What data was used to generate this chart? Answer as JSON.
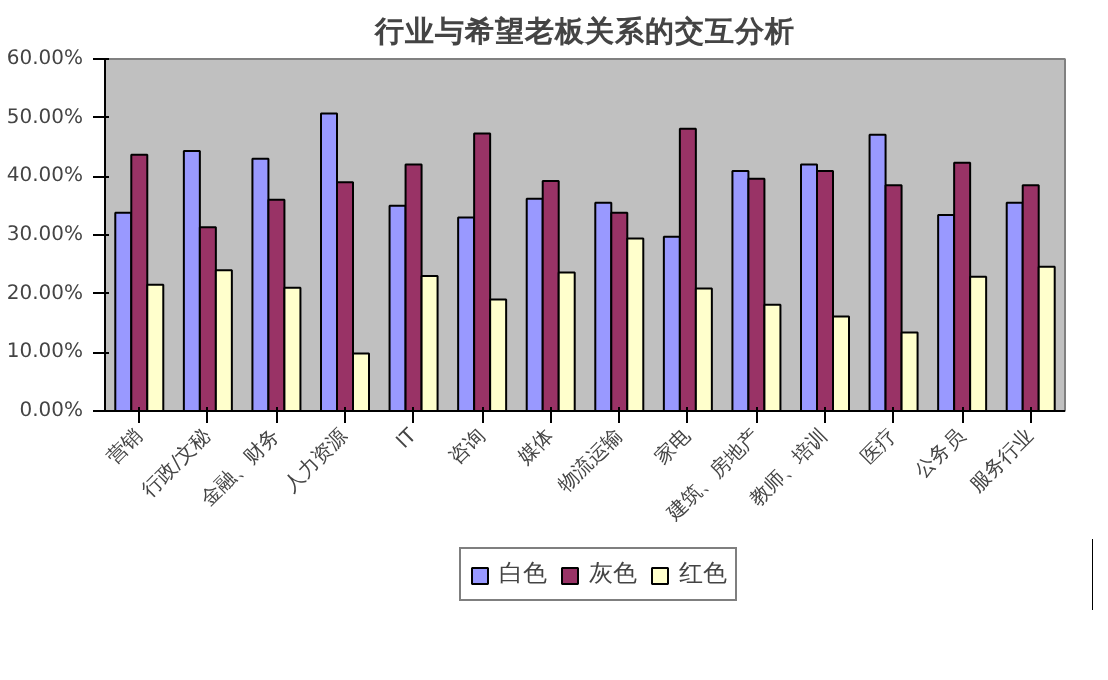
{
  "chart_data": {
    "type": "bar",
    "title": "行业与希望老板关系的交互分析",
    "categories": [
      "营销",
      "行政/文秘",
      "金融、财务",
      "人力资源",
      "IT",
      "咨询",
      "媒体",
      "物流运输",
      "家电",
      "建筑、房地产",
      "教师、培训",
      "医疗",
      "公务员",
      "服务行业"
    ],
    "series": [
      {
        "name": "白色",
        "color": "#9999ff",
        "values": [
          33.8,
          44.3,
          43,
          50.7,
          35,
          33,
          36.2,
          35.5,
          29.7,
          40.9,
          42,
          47.1,
          33.4,
          35.5
        ]
      },
      {
        "name": "灰色",
        "color": "#993366",
        "values": [
          43.7,
          31.3,
          36,
          39,
          42,
          47.3,
          39.2,
          33.8,
          48.1,
          39.6,
          40.9,
          38.5,
          42.3,
          38.5
        ]
      },
      {
        "name": "红色",
        "color": "#ffffcc",
        "values": [
          21.5,
          24,
          21,
          9.8,
          23,
          19,
          23.6,
          29.4,
          20.9,
          18.1,
          16.1,
          13.4,
          22.9,
          24.6
        ]
      }
    ],
    "ylim": [
      0,
      60
    ],
    "yticks": [
      {
        "value": 0,
        "label": "0.00%"
      },
      {
        "value": 10,
        "label": "10.00%"
      },
      {
        "value": 20,
        "label": "20.00%"
      },
      {
        "value": 30,
        "label": "30.00%"
      },
      {
        "value": 40,
        "label": "40.00%"
      },
      {
        "value": 50,
        "label": "50.00%"
      },
      {
        "value": 60,
        "label": "60.00%"
      }
    ],
    "grid": false,
    "legend": "bottom"
  }
}
